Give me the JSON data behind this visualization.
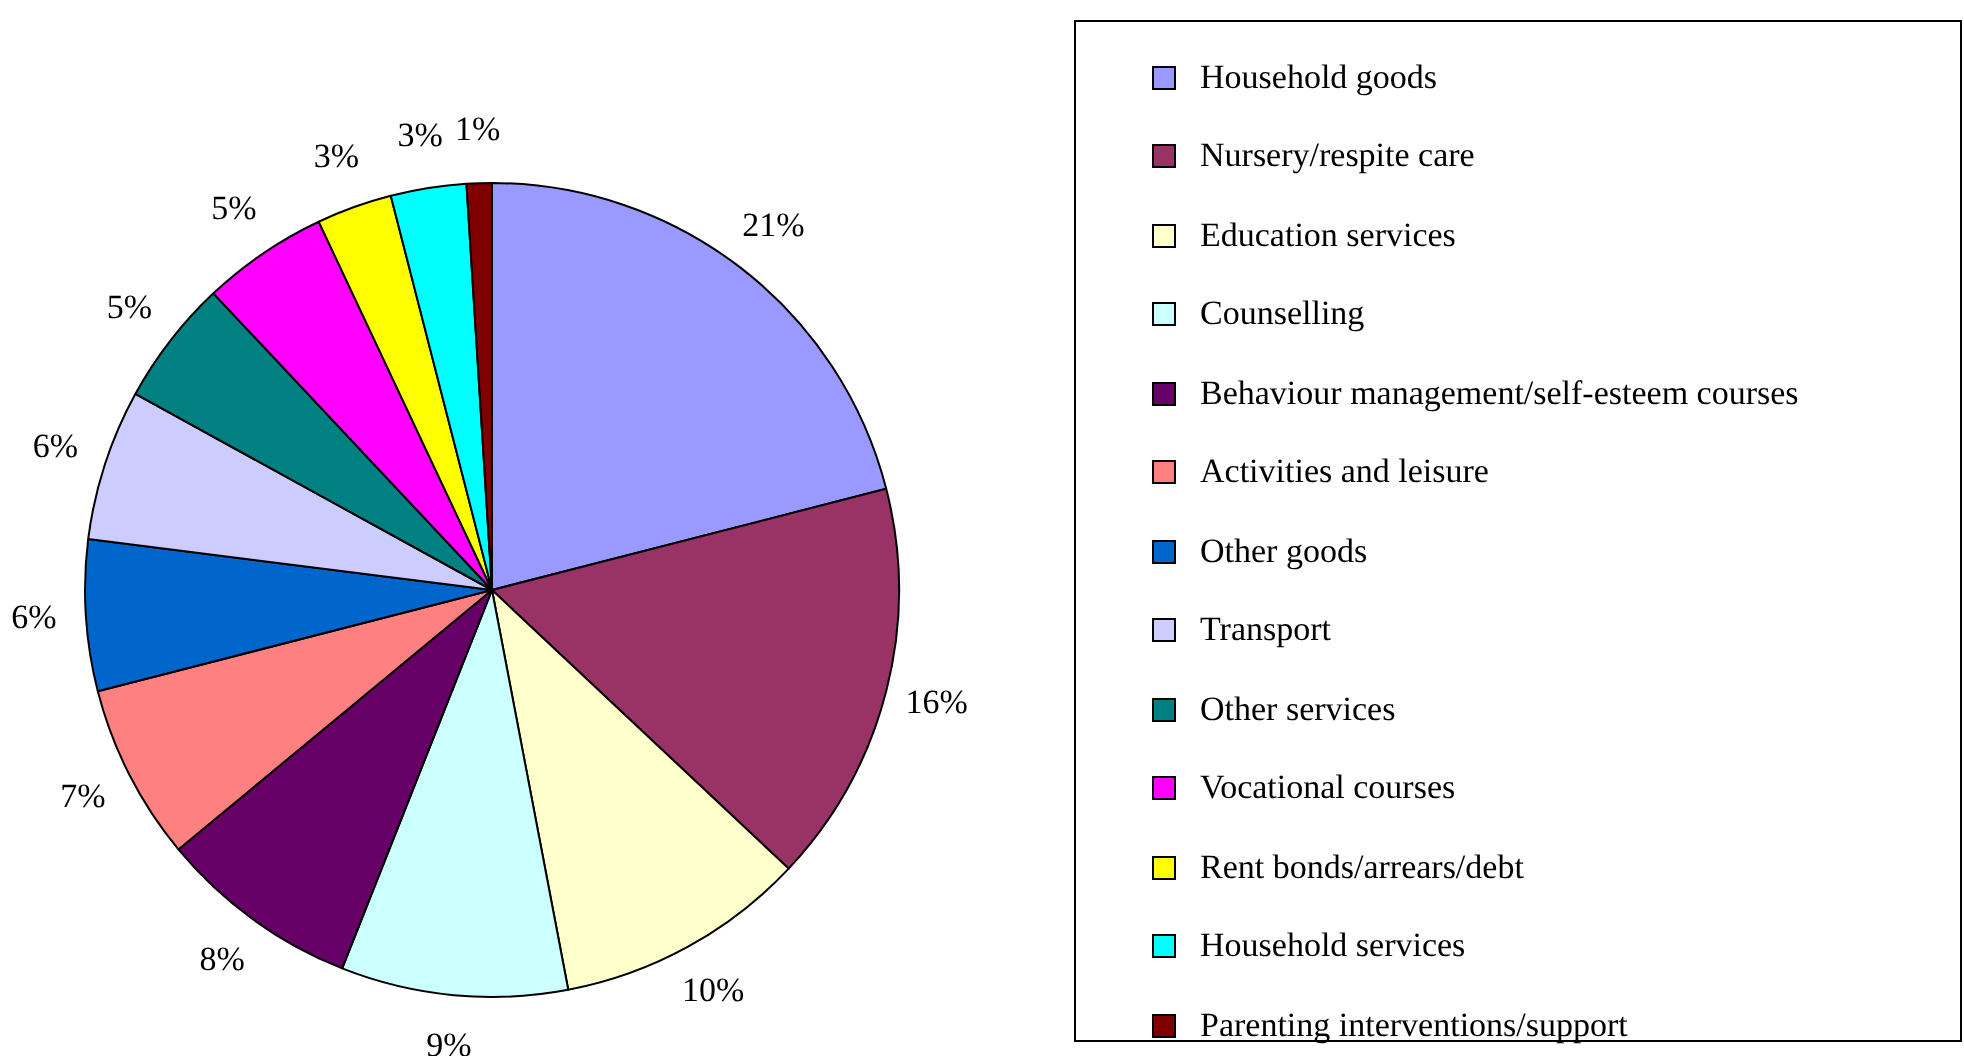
{
  "chart_data": {
    "type": "pie",
    "categories": [
      "Household goods",
      "Nursery/respite care",
      "Education services",
      "Counselling",
      "Behaviour management/self-esteem courses",
      "Activities and leisure",
      "Other goods",
      "Transport",
      "Other services",
      "Vocational courses",
      "Rent bonds/arrears/debt",
      "Household services",
      "Parenting interventions/support"
    ],
    "values": [
      21,
      16,
      10,
      9,
      8,
      7,
      6,
      6,
      5,
      5,
      3,
      3,
      1
    ],
    "colors": [
      "#9999ff",
      "#993366",
      "#ffffcc",
      "#ccffff",
      "#660066",
      "#ff8080",
      "#0066cc",
      "#ccccff",
      "#008080",
      "#ff00ff",
      "#ffff00",
      "#00ffff",
      "#800000"
    ],
    "value_labels": [
      "21%",
      "16%",
      "10%",
      "9%",
      "8%",
      "7%",
      "6%",
      "6%",
      "5%",
      "5%",
      "3%",
      "3%",
      "1%"
    ],
    "legend": "right"
  }
}
